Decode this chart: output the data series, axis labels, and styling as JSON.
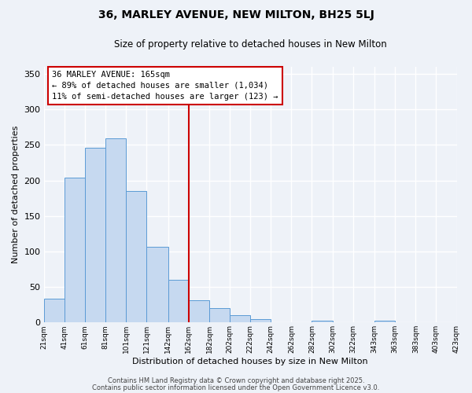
{
  "title": "36, MARLEY AVENUE, NEW MILTON, BH25 5LJ",
  "subtitle": "Size of property relative to detached houses in New Milton",
  "xlabel": "Distribution of detached houses by size in New Milton",
  "ylabel": "Number of detached properties",
  "bin_labels": [
    "21sqm",
    "41sqm",
    "61sqm",
    "81sqm",
    "101sqm",
    "121sqm",
    "142sqm",
    "162sqm",
    "182sqm",
    "202sqm",
    "222sqm",
    "242sqm",
    "262sqm",
    "282sqm",
    "302sqm",
    "322sqm",
    "343sqm",
    "363sqm",
    "383sqm",
    "403sqm",
    "423sqm"
  ],
  "bin_edges": [
    21,
    41,
    61,
    81,
    101,
    121,
    142,
    162,
    182,
    202,
    222,
    242,
    262,
    282,
    302,
    322,
    343,
    363,
    383,
    403,
    423
  ],
  "bar_heights": [
    34,
    204,
    246,
    259,
    185,
    107,
    60,
    31,
    20,
    10,
    5,
    0,
    0,
    3,
    0,
    0,
    2,
    0,
    0,
    0
  ],
  "bar_color": "#c6d9f0",
  "bar_edge_color": "#5b9bd5",
  "vline_x": 162,
  "vline_color": "#cc0000",
  "annotation_title": "36 MARLEY AVENUE: 165sqm",
  "annotation_line1": "← 89% of detached houses are smaller (1,034)",
  "annotation_line2": "11% of semi-detached houses are larger (123) →",
  "annotation_box_color": "#cc0000",
  "annotation_bg": "#ffffff",
  "ylim": [
    0,
    360
  ],
  "yticks": [
    0,
    50,
    100,
    150,
    200,
    250,
    300,
    350
  ],
  "footer1": "Contains HM Land Registry data © Crown copyright and database right 2025.",
  "footer2": "Contains public sector information licensed under the Open Government Licence v3.0.",
  "bg_color": "#eef2f8",
  "grid_color": "#ffffff"
}
